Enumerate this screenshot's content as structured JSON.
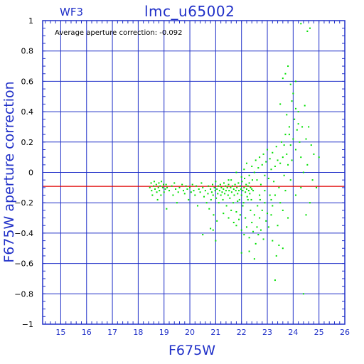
{
  "chart_data": {
    "type": "scatter",
    "title": "lmc_u65002",
    "subtitle": "WF3",
    "xlabel": "F675W",
    "ylabel": "F675W aperture correction",
    "annotation": "Average aperture correction: -0.092",
    "xlim": [
      14.3,
      26
    ],
    "ylim": [
      -1,
      1
    ],
    "x_ticks": [
      15,
      16,
      17,
      18,
      19,
      20,
      21,
      22,
      23,
      24,
      25,
      26
    ],
    "y_ticks": [
      -1,
      -0.8,
      -0.6,
      -0.4,
      -0.2,
      0,
      0.2,
      0.4,
      0.6,
      0.8,
      1
    ],
    "y_tick_labels": [
      "−1",
      "−0.8",
      "−0.6",
      "−0.4",
      "−0.2",
      "0",
      "0.2",
      "0.4",
      "0.6",
      "0.8",
      "1"
    ],
    "grid": true,
    "reference_line": {
      "y": -0.092,
      "color": "#e00000"
    },
    "colors": {
      "axis": "#2030c8",
      "grid": "#2030c8",
      "points": "#00e000"
    },
    "series": [
      {
        "points": [
          [
            18.45,
            -0.1
          ],
          [
            18.5,
            -0.07
          ],
          [
            18.52,
            -0.12
          ],
          [
            18.55,
            -0.15
          ],
          [
            18.6,
            -0.09
          ],
          [
            18.62,
            -0.06
          ],
          [
            18.65,
            -0.11
          ],
          [
            18.7,
            -0.08
          ],
          [
            18.72,
            -0.13
          ],
          [
            18.75,
            -0.18
          ],
          [
            18.78,
            -0.1
          ],
          [
            18.8,
            -0.07
          ],
          [
            18.82,
            -0.12
          ],
          [
            18.85,
            -0.09
          ],
          [
            18.88,
            -0.15
          ],
          [
            18.9,
            -0.06
          ],
          [
            18.95,
            -0.1
          ],
          [
            18.98,
            -0.08
          ],
          [
            19.0,
            -0.13
          ],
          [
            19.05,
            -0.11
          ],
          [
            19.08,
            -0.08
          ],
          [
            19.1,
            -0.24
          ],
          [
            19.12,
            -0.1
          ],
          [
            19.2,
            -0.12
          ],
          [
            19.3,
            -0.09
          ],
          [
            19.35,
            -0.15
          ],
          [
            19.4,
            -0.07
          ],
          [
            19.45,
            -0.11
          ],
          [
            19.5,
            -0.2
          ],
          [
            19.55,
            -0.13
          ],
          [
            19.6,
            -0.1
          ],
          [
            19.7,
            -0.08
          ],
          [
            19.75,
            -0.12
          ],
          [
            19.8,
            -0.14
          ],
          [
            19.85,
            -0.09
          ],
          [
            19.9,
            -0.11
          ],
          [
            19.95,
            -0.18
          ],
          [
            20.0,
            -0.1
          ],
          [
            20.05,
            -0.13
          ],
          [
            20.1,
            -0.08
          ],
          [
            20.15,
            -0.12
          ],
          [
            20.2,
            -0.15
          ],
          [
            20.25,
            -0.09
          ],
          [
            20.3,
            -0.22
          ],
          [
            20.35,
            -0.11
          ],
          [
            20.4,
            -0.13
          ],
          [
            20.45,
            -0.07
          ],
          [
            20.5,
            -0.1
          ],
          [
            20.55,
            -0.16
          ],
          [
            20.6,
            -0.12
          ],
          [
            20.65,
            -0.2
          ],
          [
            20.7,
            -0.14
          ],
          [
            20.72,
            -0.09
          ],
          [
            20.75,
            -0.24
          ],
          [
            20.8,
            -0.11
          ],
          [
            20.82,
            -0.18
          ],
          [
            20.85,
            -0.13
          ],
          [
            20.88,
            -0.08
          ],
          [
            20.9,
            -0.15
          ],
          [
            20.92,
            -0.28
          ],
          [
            20.95,
            -0.1
          ],
          [
            20.98,
            -0.12
          ],
          [
            21.0,
            -0.06
          ],
          [
            21.02,
            -0.17
          ],
          [
            21.05,
            -0.11
          ],
          [
            21.08,
            -0.14
          ],
          [
            21.1,
            -0.09
          ],
          [
            21.12,
            -0.2
          ],
          [
            21.15,
            -0.12
          ],
          [
            21.18,
            -0.08
          ],
          [
            21.2,
            -0.15
          ],
          [
            21.22,
            -0.1
          ],
          [
            21.25,
            -0.13
          ],
          [
            21.28,
            -0.18
          ],
          [
            21.3,
            -0.11
          ],
          [
            21.32,
            -0.07
          ],
          [
            21.35,
            -0.14
          ],
          [
            21.38,
            -0.09
          ],
          [
            21.4,
            -0.12
          ],
          [
            21.42,
            -0.22
          ],
          [
            21.45,
            -0.1
          ],
          [
            21.48,
            -0.15
          ],
          [
            21.5,
            -0.08
          ],
          [
            21.52,
            -0.12
          ],
          [
            21.55,
            -0.17
          ],
          [
            21.58,
            -0.1
          ],
          [
            21.6,
            -0.05
          ],
          [
            21.62,
            -0.13
          ],
          [
            21.65,
            -0.09
          ],
          [
            21.68,
            -0.2
          ],
          [
            21.7,
            -0.11
          ],
          [
            21.72,
            -0.15
          ],
          [
            21.75,
            -0.08
          ],
          [
            21.78,
            -0.12
          ],
          [
            21.8,
            -0.26
          ],
          [
            21.82,
            -0.1
          ],
          [
            21.85,
            -0.14
          ],
          [
            21.88,
            -0.07
          ],
          [
            21.9,
            -0.12
          ],
          [
            21.92,
            -0.18
          ],
          [
            21.95,
            -0.09
          ],
          [
            21.98,
            -0.11
          ],
          [
            22.0,
            -0.15
          ],
          [
            22.02,
            -0.06
          ],
          [
            22.05,
            -0.12
          ],
          [
            22.08,
            -0.2
          ],
          [
            22.1,
            -0.1
          ],
          [
            22.12,
            -0.04
          ],
          [
            22.15,
            -0.13
          ],
          [
            22.18,
            -0.08
          ],
          [
            22.2,
            -0.11
          ],
          [
            22.22,
            -0.16
          ],
          [
            22.25,
            -0.09
          ],
          [
            22.28,
            -0.12
          ],
          [
            22.3,
            -0.07
          ],
          [
            22.32,
            -0.14
          ],
          [
            22.35,
            -0.1
          ],
          [
            22.38,
            -0.18
          ],
          [
            22.4,
            -0.11
          ],
          [
            22.42,
            -0.05
          ],
          [
            20.8,
            -0.37
          ],
          [
            20.9,
            -0.38
          ],
          [
            21.0,
            -0.45
          ],
          [
            21.05,
            -0.32
          ],
          [
            20.5,
            -0.41
          ],
          [
            21.3,
            -0.27
          ],
          [
            21.5,
            -0.3
          ],
          [
            21.6,
            -0.25
          ],
          [
            21.7,
            -0.33
          ],
          [
            21.8,
            -0.35
          ],
          [
            21.85,
            -0.19
          ],
          [
            21.9,
            -0.31
          ],
          [
            21.95,
            -0.28
          ],
          [
            22.0,
            -0.38
          ],
          [
            22.05,
            -0.22
          ],
          [
            22.1,
            -0.41
          ],
          [
            22.15,
            -0.3
          ],
          [
            22.2,
            -0.36
          ],
          [
            22.25,
            -0.18
          ],
          [
            22.3,
            -0.43
          ],
          [
            22.35,
            -0.25
          ],
          [
            22.4,
            -0.33
          ],
          [
            22.45,
            -0.39
          ],
          [
            22.5,
            -0.28
          ],
          [
            22.55,
            -0.47
          ],
          [
            22.6,
            -0.36
          ],
          [
            22.62,
            -0.22
          ],
          [
            22.65,
            -0.41
          ],
          [
            22.7,
            -0.3
          ],
          [
            22.72,
            -0.18
          ],
          [
            22.75,
            -0.38
          ],
          [
            22.8,
            -0.25
          ],
          [
            22.85,
            -0.44
          ],
          [
            22.9,
            -0.2
          ],
          [
            22.95,
            -0.32
          ],
          [
            23.0,
            -0.27
          ],
          [
            23.05,
            -0.36
          ],
          [
            23.1,
            -0.15
          ],
          [
            23.15,
            -0.28
          ],
          [
            23.2,
            -0.22
          ],
          [
            22.0,
            -0.53
          ],
          [
            22.3,
            -0.52
          ],
          [
            22.5,
            -0.57
          ],
          [
            23.2,
            -0.45
          ],
          [
            23.35,
            -0.55
          ],
          [
            23.45,
            -0.48
          ],
          [
            23.6,
            -0.5
          ],
          [
            23.3,
            -0.71
          ],
          [
            24.4,
            -0.8
          ],
          [
            21.5,
            -0.05
          ],
          [
            21.8,
            0.0
          ],
          [
            22.0,
            -0.03
          ],
          [
            22.1,
            0.02
          ],
          [
            22.2,
            0.06
          ],
          [
            22.3,
            -0.02
          ],
          [
            22.4,
            0.04
          ],
          [
            22.45,
            -0.12
          ],
          [
            22.5,
            0.0
          ],
          [
            22.55,
            0.08
          ],
          [
            22.6,
            -0.05
          ],
          [
            22.65,
            0.03
          ],
          [
            22.7,
            0.1
          ],
          [
            22.75,
            -0.08
          ],
          [
            22.8,
            0.05
          ],
          [
            22.85,
            0.12
          ],
          [
            22.9,
            -0.02
          ],
          [
            22.95,
            0.07
          ],
          [
            23.0,
            0.15
          ],
          [
            23.05,
            -0.04
          ],
          [
            23.1,
            0.09
          ],
          [
            23.15,
            0.02
          ],
          [
            23.2,
            0.13
          ],
          [
            23.25,
            -0.06
          ],
          [
            23.3,
            0.04
          ],
          [
            23.35,
            0.17
          ],
          [
            23.4,
            0.08
          ],
          [
            23.45,
            -0.1
          ],
          [
            23.5,
            0.06
          ],
          [
            23.55,
            0.2
          ],
          [
            23.6,
            0.1
          ],
          [
            23.65,
            -0.02
          ],
          [
            23.7,
            0.25
          ],
          [
            23.75,
            0.12
          ],
          [
            23.8,
            0.05
          ],
          [
            23.85,
            0.3
          ],
          [
            23.9,
            0.18
          ],
          [
            23.95,
            0.08
          ],
          [
            24.0,
            0.22
          ],
          [
            24.05,
            0.35
          ],
          [
            24.1,
            0.15
          ],
          [
            24.15,
            0.28
          ],
          [
            24.2,
            0.4
          ],
          [
            24.25,
            0.2
          ],
          [
            24.3,
            0.1
          ],
          [
            24.35,
            0.3
          ],
          [
            24.4,
            0.0
          ],
          [
            24.5,
            0.22
          ],
          [
            24.55,
            0.05
          ],
          [
            24.6,
            0.3
          ],
          [
            24.7,
            0.18
          ],
          [
            24.75,
            -0.05
          ],
          [
            24.8,
            0.12
          ],
          [
            24.9,
            -0.1
          ],
          [
            25.0,
            0.1
          ],
          [
            24.65,
            -0.2
          ],
          [
            24.3,
            -0.1
          ],
          [
            24.1,
            -0.15
          ],
          [
            23.9,
            -0.05
          ],
          [
            23.7,
            -0.12
          ],
          [
            23.5,
            -0.2
          ],
          [
            23.3,
            -0.15
          ],
          [
            23.15,
            -0.18
          ],
          [
            22.9,
            -0.12
          ],
          [
            22.7,
            -0.15
          ],
          [
            23.6,
            -0.25
          ],
          [
            23.8,
            -0.3
          ],
          [
            23.4,
            -0.35
          ],
          [
            24.5,
            -0.28
          ],
          [
            23.5,
            0.45
          ],
          [
            23.6,
            0.62
          ],
          [
            23.7,
            0.65
          ],
          [
            23.8,
            0.7
          ],
          [
            23.95,
            0.47
          ],
          [
            24.0,
            0.52
          ],
          [
            24.1,
            0.42
          ],
          [
            23.9,
            0.58
          ],
          [
            24.2,
            0.32
          ],
          [
            23.75,
            0.38
          ],
          [
            24.3,
            0.98
          ],
          [
            24.55,
            0.93
          ],
          [
            24.65,
            0.95
          ],
          [
            24.1,
            0.6
          ],
          [
            23.85,
            0.25
          ],
          [
            24.45,
            0.44
          ],
          [
            23.65,
            0.18
          ]
        ]
      }
    ]
  }
}
